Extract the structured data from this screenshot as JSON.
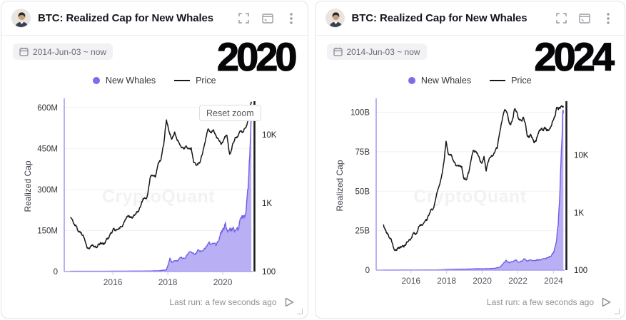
{
  "colors": {
    "accent_purple": "#7b6cec",
    "area_fill": "#a89ef1",
    "area_stroke": "#6f5fe6",
    "price_line": "#17171c",
    "axis_purple": "#a79df2",
    "grid": "#f1f1f6",
    "muted_text": "#90909a"
  },
  "panels": [
    {
      "title": "BTC: Realized Cap for New Whales",
      "date_chip": "2014-Jun-03 ~ now",
      "reset_zoom_label": "Reset zoom",
      "last_run": "Last run: a few seconds ago",
      "watermark": "CryptoQuant",
      "toolbar_icons": [
        "fullscreen-icon",
        "open-window-icon",
        "kebab-menu-icon"
      ]
    },
    {
      "title": "BTC: Realized Cap for New Whales",
      "date_chip": "2014-Jun-03 ~ now",
      "last_run": "Last run: a few seconds ago",
      "watermark": "CryptoQuant",
      "toolbar_icons": [
        "fullscreen-icon",
        "open-window-icon",
        "kebab-menu-icon"
      ]
    }
  ],
  "chart_data": [
    {
      "type": "combo-area-line",
      "title": "BTC: Realized Cap for New Whales",
      "annotation": "2020",
      "legend": [
        "New Whales",
        "Price"
      ],
      "legend_position": "top-center",
      "grid": "horizontal-faint",
      "ylabel_left": "Realized Cap",
      "x_range": [
        2014.23,
        2021.09
      ],
      "x_ticks": [
        2016,
        2018,
        2020
      ],
      "x_tick_labels": [
        "2016",
        "2018",
        "2020"
      ],
      "left_axis": {
        "unit": "USD millions",
        "range": [
          0,
          623
        ],
        "ticks": [
          0,
          150,
          300,
          450,
          600
        ],
        "tick_labels": [
          "0",
          "150M",
          "300M",
          "450M",
          "600M"
        ]
      },
      "right_axis": {
        "scale": "log",
        "unit": "USD",
        "range": [
          100,
          31000
        ],
        "ticks": [
          100,
          1000,
          10000
        ],
        "tick_labels": [
          "100",
          "1K",
          "10K"
        ]
      },
      "series": [
        {
          "name": "New Whales",
          "axis": "left",
          "style": "area",
          "points": [
            [
              2014.45,
              1
            ],
            [
              2015.5,
              1
            ],
            [
              2016.5,
              1.5
            ],
            [
              2017.3,
              2
            ],
            [
              2017.7,
              3
            ],
            [
              2017.95,
              6
            ],
            [
              2018.02,
              28
            ],
            [
              2018.08,
              50
            ],
            [
              2018.14,
              34
            ],
            [
              2018.25,
              40
            ],
            [
              2018.35,
              38
            ],
            [
              2018.45,
              52
            ],
            [
              2018.55,
              48
            ],
            [
              2018.65,
              50
            ],
            [
              2018.78,
              72
            ],
            [
              2018.9,
              68
            ],
            [
              2019.0,
              66
            ],
            [
              2019.1,
              80
            ],
            [
              2019.2,
              76
            ],
            [
              2019.3,
              78
            ],
            [
              2019.42,
              92
            ],
            [
              2019.5,
              108
            ],
            [
              2019.58,
              100
            ],
            [
              2019.68,
              104
            ],
            [
              2019.78,
              100
            ],
            [
              2019.88,
              122
            ],
            [
              2019.96,
              148
            ],
            [
              2020.04,
              152
            ],
            [
              2020.1,
              178
            ],
            [
              2020.18,
              145
            ],
            [
              2020.28,
              150
            ],
            [
              2020.38,
              162
            ],
            [
              2020.48,
              152
            ],
            [
              2020.58,
              158
            ],
            [
              2020.68,
              196
            ],
            [
              2020.78,
              205
            ],
            [
              2020.86,
              235
            ],
            [
              2020.92,
              300
            ],
            [
              2020.98,
              420
            ],
            [
              2021.04,
              560
            ]
          ]
        },
        {
          "name": "Price",
          "axis": "right",
          "style": "line",
          "points": [
            [
              2014.45,
              620
            ],
            [
              2014.55,
              540
            ],
            [
              2014.65,
              480
            ],
            [
              2014.75,
              390
            ],
            [
              2014.85,
              370
            ],
            [
              2014.95,
              310
            ],
            [
              2015.05,
              230
            ],
            [
              2015.15,
              215
            ],
            [
              2015.25,
              245
            ],
            [
              2015.35,
              235
            ],
            [
              2015.45,
              240
            ],
            [
              2015.55,
              265
            ],
            [
              2015.65,
              250
            ],
            [
              2015.75,
              285
            ],
            [
              2015.85,
              310
            ],
            [
              2015.95,
              370
            ],
            [
              2016.05,
              420
            ],
            [
              2016.15,
              410
            ],
            [
              2016.25,
              425
            ],
            [
              2016.35,
              455
            ],
            [
              2016.45,
              580
            ],
            [
              2016.55,
              660
            ],
            [
              2016.65,
              620
            ],
            [
              2016.75,
              650
            ],
            [
              2016.85,
              710
            ],
            [
              2016.95,
              790
            ],
            [
              2017.05,
              1050
            ],
            [
              2017.15,
              1200
            ],
            [
              2017.25,
              1250
            ],
            [
              2017.35,
              2300
            ],
            [
              2017.45,
              2550
            ],
            [
              2017.55,
              2400
            ],
            [
              2017.65,
              3800
            ],
            [
              2017.75,
              4300
            ],
            [
              2017.85,
              7000
            ],
            [
              2017.95,
              16500
            ],
            [
              2018.0,
              14000
            ],
            [
              2018.05,
              11000
            ],
            [
              2018.15,
              8700
            ],
            [
              2018.25,
              11000
            ],
            [
              2018.35,
              8200
            ],
            [
              2018.45,
              7100
            ],
            [
              2018.55,
              6450
            ],
            [
              2018.65,
              6700
            ],
            [
              2018.75,
              6300
            ],
            [
              2018.85,
              6450
            ],
            [
              2018.95,
              3900
            ],
            [
              2019.05,
              3600
            ],
            [
              2019.15,
              3850
            ],
            [
              2019.25,
              5100
            ],
            [
              2019.35,
              7600
            ],
            [
              2019.45,
              11800
            ],
            [
              2019.55,
              10800
            ],
            [
              2019.65,
              11900
            ],
            [
              2019.75,
              9800
            ],
            [
              2019.85,
              8500
            ],
            [
              2019.95,
              7300
            ],
            [
              2020.05,
              8800
            ],
            [
              2020.15,
              9900
            ],
            [
              2020.25,
              5200
            ],
            [
              2020.35,
              7000
            ],
            [
              2020.45,
              9100
            ],
            [
              2020.55,
              9600
            ],
            [
              2020.65,
              11400
            ],
            [
              2020.75,
              11000
            ],
            [
              2020.85,
              13000
            ],
            [
              2020.92,
              16500
            ],
            [
              2020.98,
              23500
            ],
            [
              2021.04,
              30500
            ]
          ]
        }
      ]
    },
    {
      "type": "combo-area-line",
      "title": "BTC: Realized Cap for New Whales",
      "annotation": "2024",
      "legend": [
        "New Whales",
        "Price"
      ],
      "legend_position": "top-center",
      "grid": "horizontal-faint",
      "ylabel_left": "Realized Cap",
      "x_range": [
        2014.05,
        2024.62
      ],
      "x_ticks": [
        2016,
        2018,
        2020,
        2022,
        2024
      ],
      "x_tick_labels": [
        "2016",
        "2018",
        "2020",
        "2022",
        "2024"
      ],
      "left_axis": {
        "unit": "USD billions",
        "range": [
          0,
          107
        ],
        "ticks": [
          0,
          25,
          50,
          75,
          100
        ],
        "tick_labels": [
          "0",
          "25B",
          "50B",
          "75B",
          "100B"
        ]
      },
      "right_axis": {
        "scale": "log",
        "unit": "USD",
        "range": [
          100,
          87000
        ],
        "ticks": [
          100,
          1000,
          10000
        ],
        "tick_labels": [
          "100",
          "1K",
          "10K"
        ]
      },
      "series": [
        {
          "name": "New Whales",
          "axis": "left",
          "style": "area",
          "points": [
            [
              2014.45,
              0.05
            ],
            [
              2016.0,
              0.1
            ],
            [
              2017.5,
              0.2
            ],
            [
              2018.1,
              0.5
            ],
            [
              2018.6,
              0.6
            ],
            [
              2019.2,
              0.7
            ],
            [
              2019.8,
              0.9
            ],
            [
              2020.2,
              0.9
            ],
            [
              2020.6,
              1.1
            ],
            [
              2020.9,
              1.6
            ],
            [
              2021.05,
              2.5
            ],
            [
              2021.2,
              4.5
            ],
            [
              2021.32,
              6.2
            ],
            [
              2021.42,
              5.0
            ],
            [
              2021.55,
              4.6
            ],
            [
              2021.7,
              5.2
            ],
            [
              2021.85,
              6.4
            ],
            [
              2021.95,
              5.8
            ],
            [
              2022.1,
              5.2
            ],
            [
              2022.25,
              5.6
            ],
            [
              2022.38,
              7.0
            ],
            [
              2022.48,
              6.0
            ],
            [
              2022.6,
              6.2
            ],
            [
              2022.75,
              6.4
            ],
            [
              2022.9,
              6.2
            ],
            [
              2023.05,
              6.5
            ],
            [
              2023.2,
              6.8
            ],
            [
              2023.35,
              7.0
            ],
            [
              2023.5,
              7.3
            ],
            [
              2023.65,
              7.8
            ],
            [
              2023.8,
              8.6
            ],
            [
              2023.92,
              10.0
            ],
            [
              2024.02,
              12.0
            ],
            [
              2024.1,
              15.0
            ],
            [
              2024.18,
              20.0
            ],
            [
              2024.26,
              28.0
            ],
            [
              2024.34,
              45.0
            ],
            [
              2024.42,
              70.0
            ],
            [
              2024.5,
              95.0
            ],
            [
              2024.55,
              101.0
            ]
          ]
        },
        {
          "name": "Price",
          "axis": "right",
          "style": "line",
          "points": [
            [
              2014.45,
              620
            ],
            [
              2014.6,
              480
            ],
            [
              2014.75,
              390
            ],
            [
              2014.9,
              340
            ],
            [
              2015.05,
              230
            ],
            [
              2015.2,
              220
            ],
            [
              2015.35,
              240
            ],
            [
              2015.5,
              260
            ],
            [
              2015.7,
              270
            ],
            [
              2015.9,
              340
            ],
            [
              2016.1,
              420
            ],
            [
              2016.3,
              430
            ],
            [
              2016.5,
              600
            ],
            [
              2016.7,
              650
            ],
            [
              2016.9,
              740
            ],
            [
              2017.1,
              1100
            ],
            [
              2017.3,
              1300
            ],
            [
              2017.5,
              2500
            ],
            [
              2017.7,
              4000
            ],
            [
              2017.85,
              7500
            ],
            [
              2017.97,
              17500
            ],
            [
              2018.1,
              10500
            ],
            [
              2018.25,
              10300
            ],
            [
              2018.4,
              7800
            ],
            [
              2018.55,
              6500
            ],
            [
              2018.7,
              6600
            ],
            [
              2018.85,
              6400
            ],
            [
              2018.97,
              3900
            ],
            [
              2019.1,
              3700
            ],
            [
              2019.25,
              5100
            ],
            [
              2019.4,
              9000
            ],
            [
              2019.5,
              12200
            ],
            [
              2019.65,
              11500
            ],
            [
              2019.8,
              9600
            ],
            [
              2019.95,
              7300
            ],
            [
              2020.1,
              9500
            ],
            [
              2020.22,
              5300
            ],
            [
              2020.38,
              8500
            ],
            [
              2020.55,
              9600
            ],
            [
              2020.7,
              11300
            ],
            [
              2020.85,
              13500
            ],
            [
              2020.97,
              24000
            ],
            [
              2021.1,
              38000
            ],
            [
              2021.2,
              55000
            ],
            [
              2021.3,
              61000
            ],
            [
              2021.4,
              54000
            ],
            [
              2021.5,
              37000
            ],
            [
              2021.6,
              34000
            ],
            [
              2021.72,
              44000
            ],
            [
              2021.82,
              64000
            ],
            [
              2021.92,
              58000
            ],
            [
              2022.02,
              44000
            ],
            [
              2022.12,
              42000
            ],
            [
              2022.22,
              39000
            ],
            [
              2022.32,
              45000
            ],
            [
              2022.42,
              36000
            ],
            [
              2022.52,
              22000
            ],
            [
              2022.62,
              20500
            ],
            [
              2022.72,
              23000
            ],
            [
              2022.82,
              20000
            ],
            [
              2022.92,
              16500
            ],
            [
              2023.02,
              17500
            ],
            [
              2023.12,
              22500
            ],
            [
              2023.22,
              27500
            ],
            [
              2023.32,
              29500
            ],
            [
              2023.42,
              27000
            ],
            [
              2023.52,
              30500
            ],
            [
              2023.62,
              26500
            ],
            [
              2023.72,
              27500
            ],
            [
              2023.82,
              29500
            ],
            [
              2023.92,
              37000
            ],
            [
              2024.02,
              44500
            ],
            [
              2024.1,
              49000
            ],
            [
              2024.18,
              68000
            ],
            [
              2024.28,
              63000
            ],
            [
              2024.38,
              66500
            ],
            [
              2024.48,
              70500
            ],
            [
              2024.55,
              68000
            ]
          ]
        }
      ]
    }
  ]
}
